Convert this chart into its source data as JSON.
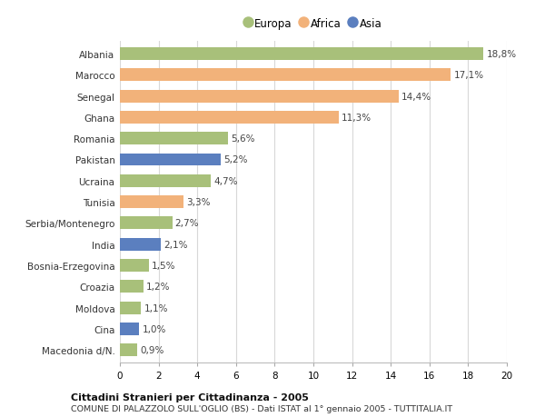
{
  "categories": [
    "Albania",
    "Marocco",
    "Senegal",
    "Ghana",
    "Romania",
    "Pakistan",
    "Ucraina",
    "Tunisia",
    "Serbia/Montenegro",
    "India",
    "Bosnia-Erzegovina",
    "Croazia",
    "Moldova",
    "Cina",
    "Macedonia d/N."
  ],
  "values": [
    18.8,
    17.1,
    14.4,
    11.3,
    5.6,
    5.2,
    4.7,
    3.3,
    2.7,
    2.1,
    1.5,
    1.2,
    1.1,
    1.0,
    0.9
  ],
  "labels": [
    "18,8%",
    "17,1%",
    "14,4%",
    "11,3%",
    "5,6%",
    "5,2%",
    "4,7%",
    "3,3%",
    "2,7%",
    "2,1%",
    "1,5%",
    "1,2%",
    "1,1%",
    "1,0%",
    "0,9%"
  ],
  "continents": [
    "Europa",
    "Africa",
    "Africa",
    "Africa",
    "Europa",
    "Asia",
    "Europa",
    "Africa",
    "Europa",
    "Asia",
    "Europa",
    "Europa",
    "Europa",
    "Asia",
    "Europa"
  ],
  "colors": {
    "Europa": "#a8c07a",
    "Africa": "#f2b27a",
    "Asia": "#5b7fbf"
  },
  "legend_labels": [
    "Europa",
    "Africa",
    "Asia"
  ],
  "title1": "Cittadini Stranieri per Cittadinanza - 2005",
  "title2": "COMUNE DI PALAZZOLO SULL'OGLIO (BS) - Dati ISTAT al 1° gennaio 2005 - TUTTITALIA.IT",
  "xlim": [
    0,
    20
  ],
  "xticks": [
    0,
    2,
    4,
    6,
    8,
    10,
    12,
    14,
    16,
    18,
    20
  ],
  "background_color": "#ffffff",
  "grid_color": "#d8d8d8"
}
